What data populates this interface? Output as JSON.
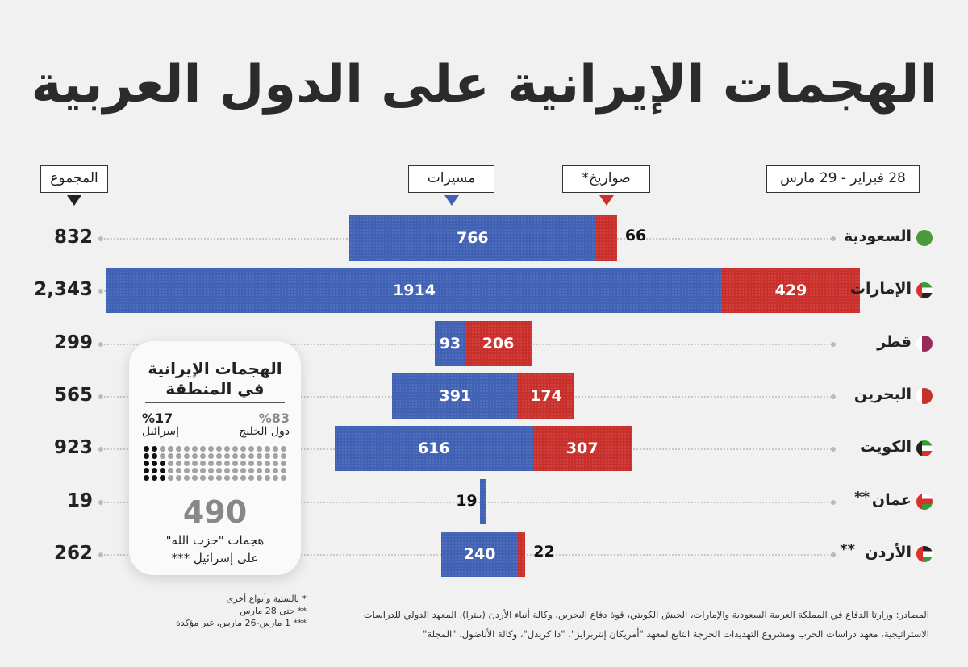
{
  "title": "الهجمات الإيرانية على الدول العربية",
  "labels": {
    "total": "المجموع",
    "drones": "مسيرات",
    "missiles": "صواريخ*",
    "date": "28  فبراير - 29 مارس"
  },
  "colors": {
    "drones": "#4061b4",
    "missiles": "#c9302c"
  },
  "chart_data": {
    "type": "bar",
    "stacked": true,
    "orientation": "horizontal",
    "categories": [
      "السعودية",
      "الإمارات",
      "قطر",
      "البحرين",
      "الكويت",
      "عمان",
      "الأردن"
    ],
    "category_marks": [
      "",
      "",
      "",
      "",
      "",
      "**",
      "**"
    ],
    "series": [
      {
        "name": "مسيرات",
        "values": [
          766,
          1914,
          93,
          391,
          616,
          19,
          240
        ]
      },
      {
        "name": "صواريخ*",
        "values": [
          66,
          429,
          206,
          174,
          307,
          0,
          22
        ]
      }
    ],
    "totals": [
      "832",
      "2,343",
      "299",
      "565",
      "923",
      "19",
      "262"
    ]
  },
  "flags": [
    "saudi-arabia",
    "uae",
    "qatar",
    "bahrain",
    "kuwait",
    "oman",
    "jordan"
  ],
  "inset": {
    "title1": "الهجمات الإيرانية",
    "title2": "في المنطقة",
    "gulf_pct": "%83",
    "gulf_label": "دول الخليج",
    "israel_pct": "%17",
    "israel_label": "إسرائيل",
    "count": "490",
    "line1": "هجمات \"حزب الله\"",
    "line2": "على إسرائيل ***"
  },
  "notes": [
    "* بالستية وأنواع أخرى",
    "** حتى 28 مارس",
    "*** 1 مارس-26 مارس، غير مؤكدة"
  ],
  "sources": "المصادر: وزارتا الدفاع في المملكة العربية السعودية والإمارات، الجيش الكويتي، قوة دفاع البحرين، وكالة أنباء الأردن (بيترا)، المعهد الدولي للدراسات الاستراتيجية، معهد دراسات الحرب ومشروع التهديدات الحرجة التابع لمعهد \"أمريكان إنتربرايز\"، \"ذا كريدل\"، وكالة الأناضول، \"المجلة\""
}
